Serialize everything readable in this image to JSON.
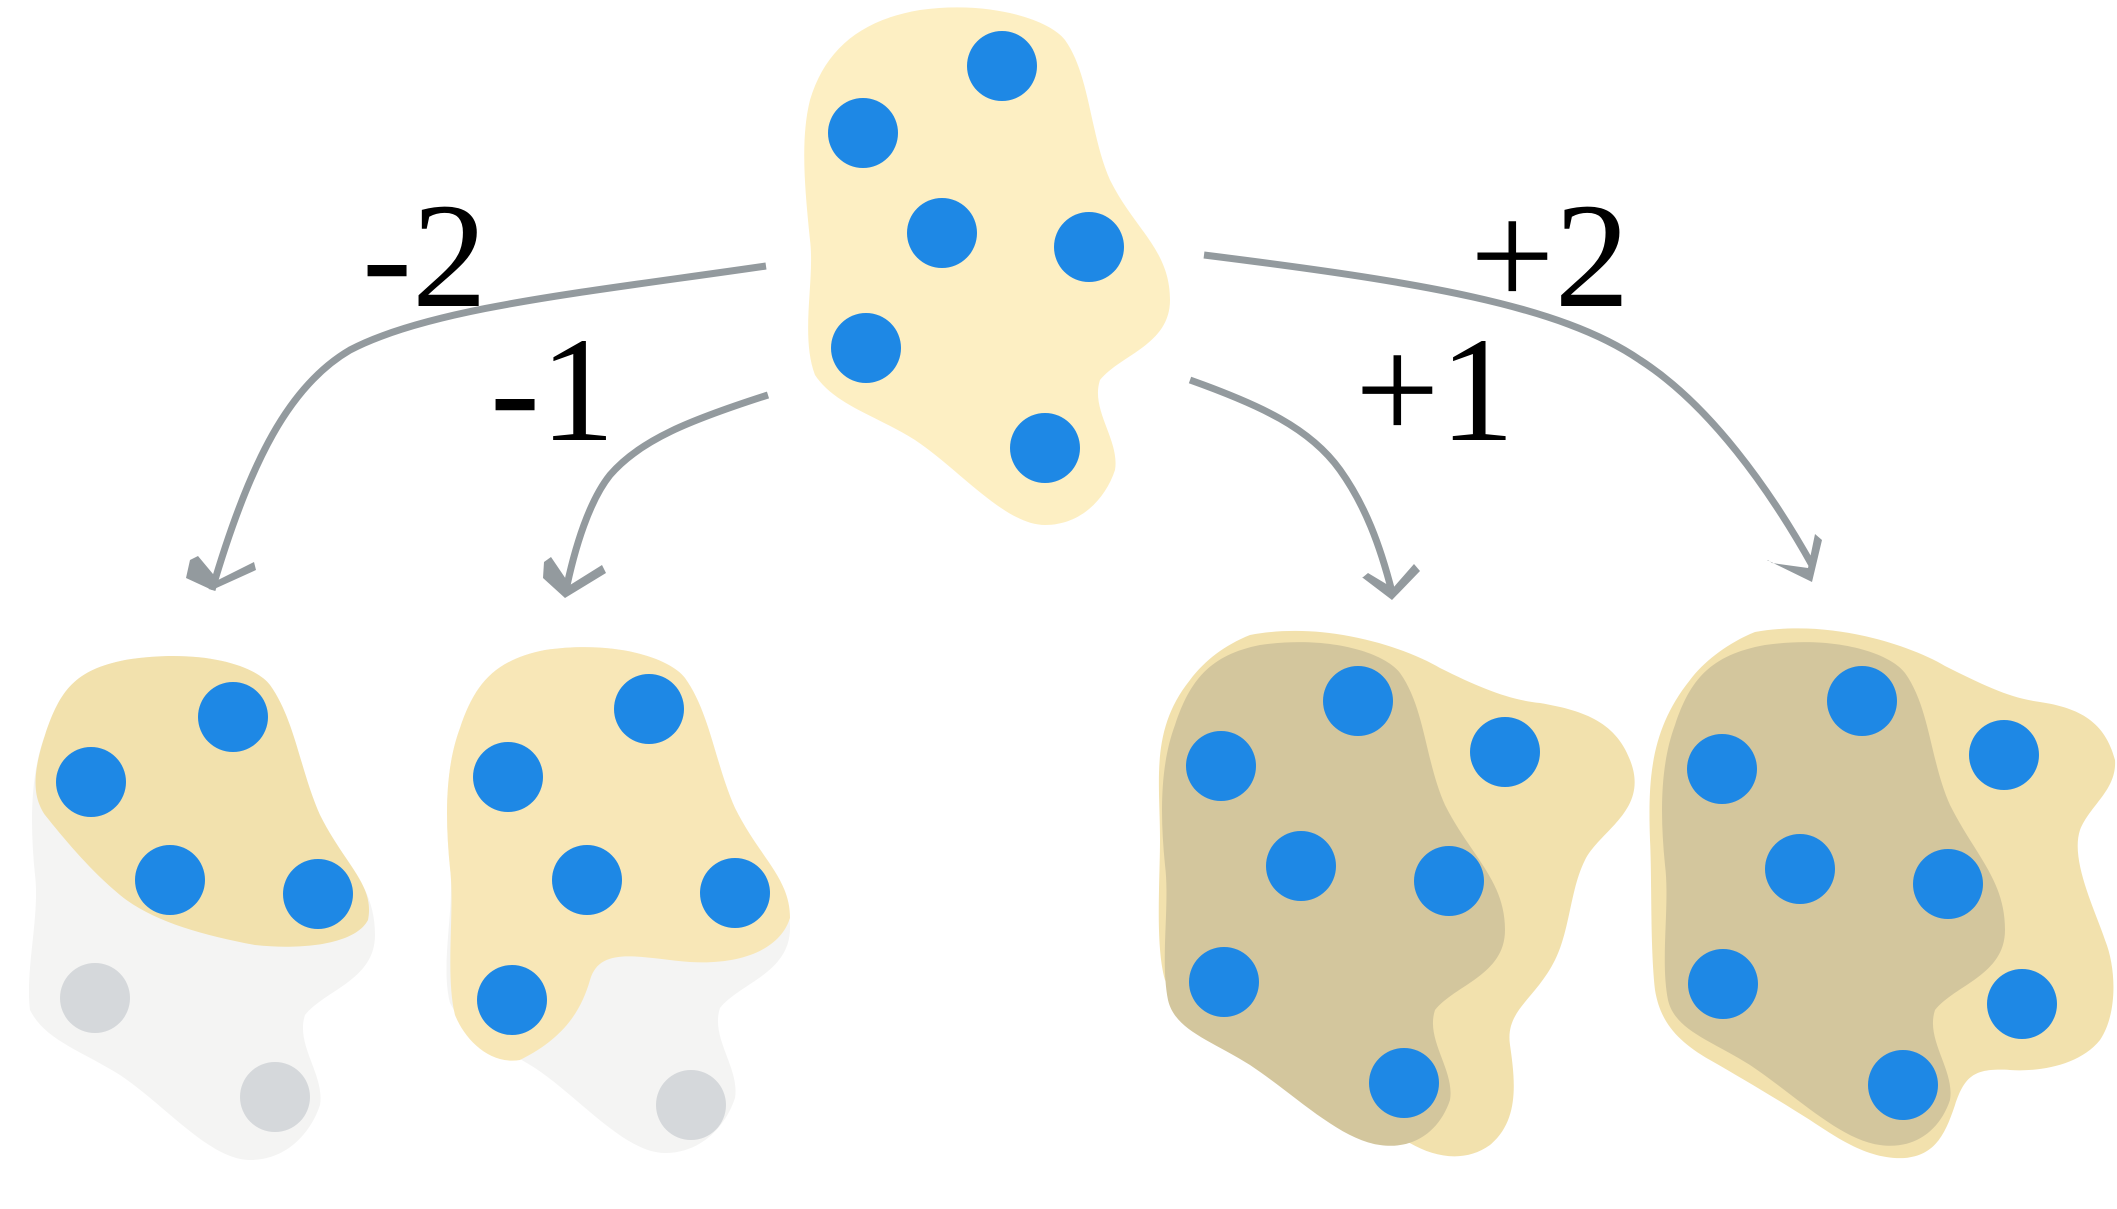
{
  "labels": {
    "minus_two": "-2",
    "minus_one": "-1",
    "plus_one": "+1",
    "plus_two": "+2"
  },
  "colors": {
    "dot": "#1e88e5",
    "ghost_dot": "#d5d8db",
    "arrow": "#939a9e",
    "blob": "#fdefc3",
    "darker_blob": "#d3c69d"
  }
}
